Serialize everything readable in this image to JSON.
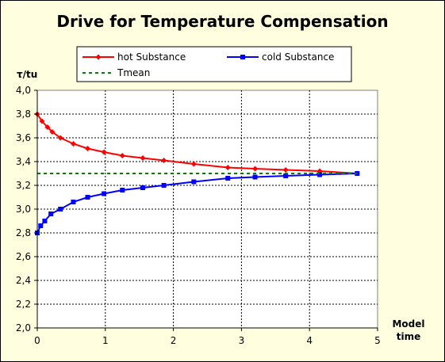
{
  "chart_data": {
    "type": "line",
    "title": "Drive for Temperature Compensation",
    "ylabel": "τ/tu",
    "xlabel_line1": "Model",
    "xlabel_line2": "time",
    "xlim": [
      0,
      5
    ],
    "ylim": [
      2.0,
      4.0
    ],
    "xticks": [
      0,
      1,
      2,
      3,
      4,
      5
    ],
    "yticks": [
      "2,0",
      "2,2",
      "2,4",
      "2,6",
      "2,8",
      "3,0",
      "3,2",
      "3,4",
      "3,6",
      "3,8",
      "4,0"
    ],
    "grid": true,
    "legend_position": "top",
    "plot_background": "#ffffff",
    "frame_background": "#ffffe0",
    "series": [
      {
        "name": "hot Substance",
        "color": "#ff0000",
        "marker": "diamond",
        "x": [
          0,
          0.07,
          0.15,
          0.22,
          0.34,
          0.53,
          0.74,
          0.98,
          1.25,
          1.55,
          1.86,
          2.3,
          2.8,
          3.2,
          3.65,
          4.15,
          4.7
        ],
        "y": [
          3.8,
          3.74,
          3.69,
          3.65,
          3.6,
          3.55,
          3.51,
          3.48,
          3.45,
          3.43,
          3.41,
          3.38,
          3.35,
          3.34,
          3.33,
          3.32,
          3.3
        ]
      },
      {
        "name": "cold Substance",
        "color": "#0000ff",
        "marker": "square",
        "x": [
          0,
          0.05,
          0.11,
          0.2,
          0.34,
          0.53,
          0.74,
          0.98,
          1.25,
          1.55,
          1.86,
          2.3,
          2.8,
          3.2,
          3.65,
          4.15,
          4.7
        ],
        "y": [
          2.8,
          2.86,
          2.9,
          2.96,
          3.0,
          3.06,
          3.1,
          3.13,
          3.16,
          3.18,
          3.2,
          3.23,
          3.26,
          3.27,
          3.28,
          3.29,
          3.3
        ]
      },
      {
        "name": "Tmean",
        "color": "#008000",
        "style": "dashed",
        "x": [
          0,
          4.7
        ],
        "y": [
          3.3,
          3.3
        ]
      }
    ]
  }
}
